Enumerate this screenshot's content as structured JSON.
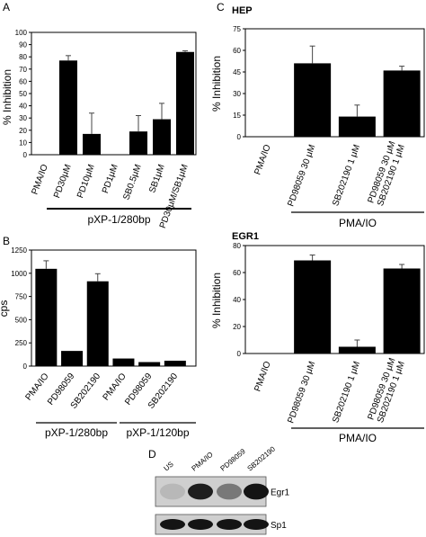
{
  "chart_data": [
    {
      "id": "A",
      "panel_label": "A",
      "type": "bar",
      "ylabel": "% Inhibition",
      "ylim": [
        0,
        100
      ],
      "yticks": [
        "0",
        "10",
        "20",
        "30",
        "40",
        "50",
        "60",
        "70",
        "80",
        "90",
        "100"
      ],
      "categories": [
        "PMA/IO",
        "PD30μM",
        "PD10μM",
        "PD1μM",
        "SB0.5μM",
        "SB1μM",
        "PD30μM/SB1μM"
      ],
      "values": [
        0,
        77,
        17,
        0,
        19,
        29,
        84
      ],
      "errors": [
        0,
        4,
        17,
        0,
        13,
        13,
        1
      ],
      "group_labels": [
        "pXP-1/280bp"
      ]
    },
    {
      "id": "B",
      "panel_label": "B",
      "type": "bar",
      "ylabel": "cps",
      "ylim": [
        0,
        1300
      ],
      "yticks": [
        "0",
        "250",
        "500",
        "750",
        "1000",
        "1250"
      ],
      "categories": [
        "PMA/IO",
        "PD98059",
        "SB202190",
        "PMA/IO",
        "PD98059",
        "SB202190"
      ],
      "values": [
        1090,
        170,
        950,
        85,
        45,
        60
      ],
      "errors": [
        90,
        0,
        85,
        0,
        0,
        0
      ],
      "group_labels": [
        "pXP-1/280bp",
        "pXP-1/120bp"
      ]
    },
    {
      "id": "C1",
      "panel_label": "C",
      "type": "bar",
      "title": "HEP",
      "ylabel": "% Inhibition",
      "ylim": [
        0,
        75
      ],
      "yticks": [
        "0",
        "15",
        "30",
        "45",
        "60",
        "75"
      ],
      "categories": [
        "PMA/IO",
        "PD98059 30 μM",
        "SB202190 1 μM",
        "PD98059 30 μM\nSB202190 1 μM"
      ],
      "values": [
        0,
        51,
        14,
        46
      ],
      "errors": [
        0,
        12,
        8,
        3
      ],
      "group_labels": [
        "PMA/IO"
      ]
    },
    {
      "id": "C2",
      "type": "bar",
      "title": "EGR1",
      "ylabel": "% Inhibition",
      "ylim": [
        0,
        80
      ],
      "yticks": [
        "0",
        "20",
        "40",
        "60",
        "80"
      ],
      "categories": [
        "PMA/IO",
        "PD98059 30 μM",
        "SB202190 1 μM",
        "PD98059 30 μM\nSB202190 1 μM"
      ],
      "values": [
        0,
        69,
        5,
        63
      ],
      "errors": [
        0,
        4,
        5,
        3
      ],
      "group_labels": [
        "PMA/IO"
      ]
    }
  ],
  "blot": {
    "panel_label": "D",
    "lanes": [
      "US",
      "PMA/IO",
      "PD98059",
      "SB202190"
    ],
    "bands": [
      {
        "name": "Egr1",
        "intensity": [
          0.08,
          0.85,
          0.4,
          0.9
        ]
      },
      {
        "name": "Sp1",
        "intensity": [
          0.9,
          0.9,
          0.9,
          0.9
        ]
      }
    ]
  }
}
